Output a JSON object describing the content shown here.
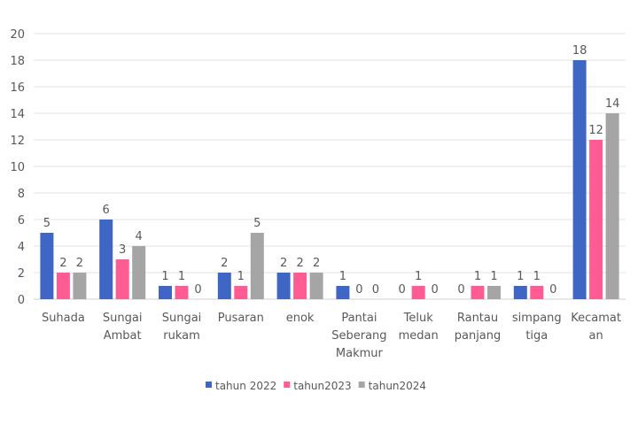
{
  "chart_data": {
    "type": "bar",
    "title": "",
    "xlabel": "",
    "ylabel": "",
    "ylim": [
      0,
      20
    ],
    "yticks": [
      0,
      2,
      4,
      6,
      8,
      10,
      12,
      14,
      16,
      18,
      20
    ],
    "grid": true,
    "legend_position": "bottom",
    "categories": [
      [
        "Suhada"
      ],
      [
        "Sungai",
        "Ambat"
      ],
      [
        "Sungai",
        "rukam"
      ],
      [
        "Pusaran"
      ],
      [
        "enok"
      ],
      [
        "Pantai",
        "Seberang",
        "Makmur"
      ],
      [
        "Teluk",
        "medan"
      ],
      [
        "Rantau",
        "panjang"
      ],
      [
        "simpang",
        "tiga"
      ],
      [
        "Kecamat",
        "an"
      ]
    ],
    "series": [
      {
        "name": "tahun 2022",
        "color": "#3f66c4",
        "values": [
          5,
          6,
          1,
          2,
          2,
          1,
          0,
          0,
          1,
          18
        ]
      },
      {
        "name": "tahun2023",
        "color": "#ff5c93",
        "values": [
          2,
          3,
          1,
          1,
          2,
          0,
          1,
          1,
          1,
          12
        ]
      },
      {
        "name": "tahun2024",
        "color": "#a5a5a5",
        "values": [
          2,
          4,
          0,
          5,
          2,
          0,
          0,
          1,
          0,
          14
        ]
      }
    ]
  }
}
